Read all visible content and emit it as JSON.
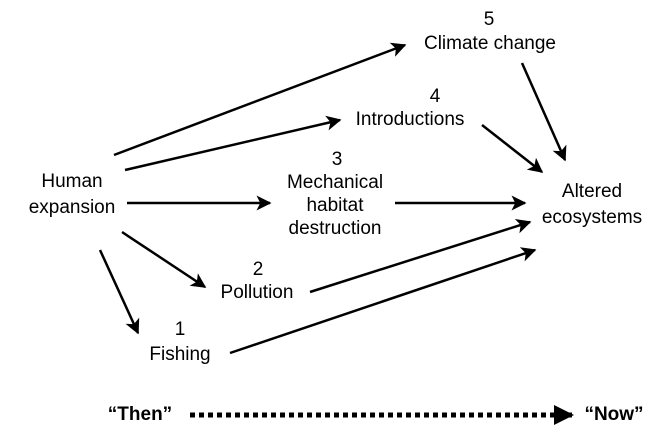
{
  "source": {
    "lines": [
      "Human",
      "expansion"
    ]
  },
  "target": {
    "lines": [
      "Altered",
      "ecosystems"
    ]
  },
  "drivers": [
    {
      "number": "5",
      "lines": [
        "Climate change"
      ]
    },
    {
      "number": "4",
      "lines": [
        "Introductions"
      ]
    },
    {
      "number": "3",
      "lines": [
        "Mechanical",
        "habitat",
        "destruction"
      ]
    },
    {
      "number": "2",
      "lines": [
        "Pollution"
      ]
    },
    {
      "number": "1",
      "lines": [
        "Fishing"
      ]
    }
  ],
  "timeline": {
    "start": "“Then”",
    "end": "“Now”"
  }
}
